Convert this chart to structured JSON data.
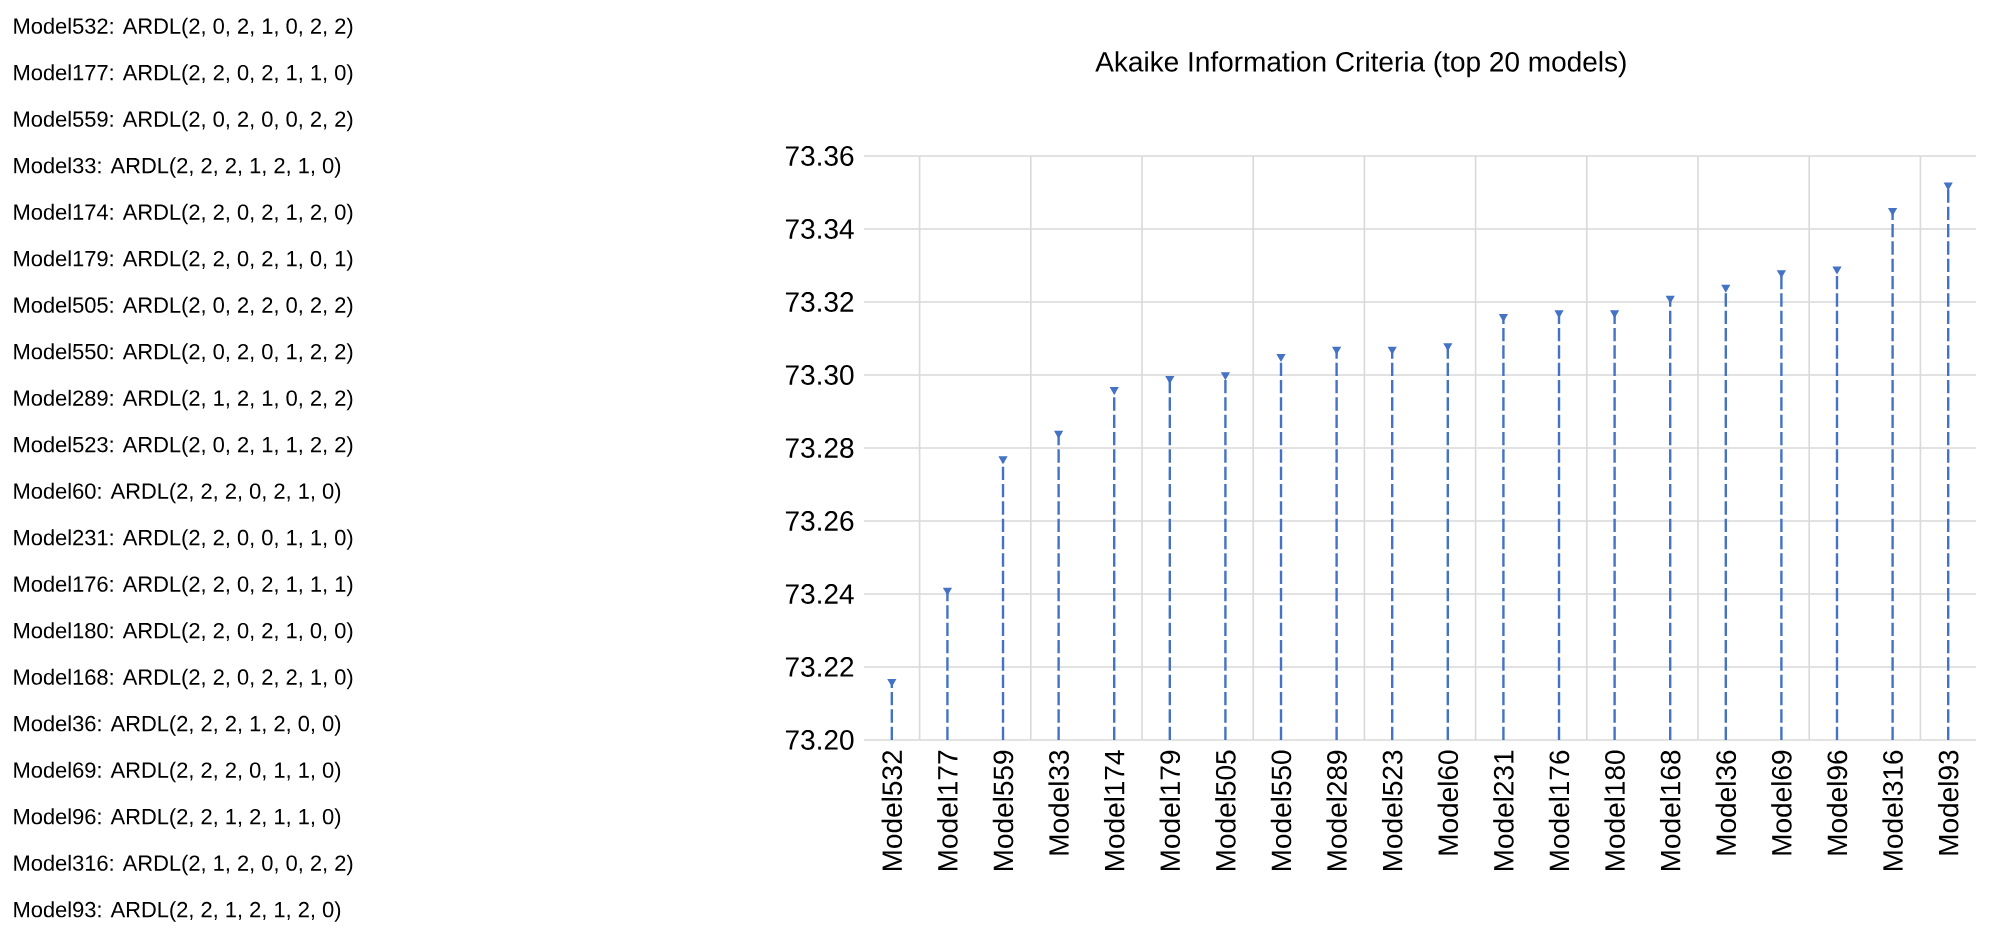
{
  "chart_data": {
    "type": "lollipop",
    "title": "Akaike Information Criteria (top 20 models)",
    "categories": [
      "Model532",
      "Model177",
      "Model559",
      "Model33",
      "Model174",
      "Model179",
      "Model505",
      "Model550",
      "Model289",
      "Model523",
      "Model60",
      "Model231",
      "Model176",
      "Model180",
      "Model168",
      "Model36",
      "Model69",
      "Model96",
      "Model316",
      "Model93"
    ],
    "values": [
      73.216,
      73.241,
      73.277,
      73.284,
      73.296,
      73.299,
      73.3,
      73.305,
      73.307,
      73.307,
      73.308,
      73.316,
      73.317,
      73.317,
      73.321,
      73.324,
      73.328,
      73.329,
      73.345,
      73.352
    ],
    "color": "#4472c4",
    "marker": "triangle",
    "line_style": "dashed",
    "grid": true,
    "ylim": [
      73.2,
      73.36
    ],
    "yticks": [
      {
        "value": 73.2,
        "label": "73.20"
      },
      {
        "value": 73.22,
        "label": "73.22"
      },
      {
        "value": 73.24,
        "label": "73.24"
      },
      {
        "value": 73.26,
        "label": "73.26"
      },
      {
        "value": 73.28,
        "label": "73.28"
      },
      {
        "value": 73.3,
        "label": "73.30"
      },
      {
        "value": 73.32,
        "label": "73.32"
      },
      {
        "value": 73.34,
        "label": "73.34"
      },
      {
        "value": 73.36,
        "label": "73.36"
      }
    ],
    "annotations": [
      "Model532: ARDL(2, 0, 2, 1, 0, 2, 2)",
      "Model177: ARDL(2, 2, 0, 2, 1, 1, 0)",
      "Model559: ARDL(2, 0, 2, 0, 0, 2, 2)",
      "Model33: ARDL(2, 2, 2, 1, 2, 1, 0)",
      "Model174: ARDL(2, 2, 0, 2, 1, 2, 0)",
      "Model179: ARDL(2, 2, 0, 2, 1, 0, 1)",
      "Model505: ARDL(2, 0, 2, 2, 0, 2, 2)",
      "Model550: ARDL(2, 0, 2, 0, 1, 2, 2)",
      "Model289: ARDL(2, 1, 2, 1, 0, 2, 2)",
      "Model523: ARDL(2, 0, 2, 1, 1, 2, 2)",
      "Model60: ARDL(2, 2, 2, 0, 2, 1, 0)",
      "Model231: ARDL(2, 2, 0, 0, 1, 1, 0)",
      "Model176: ARDL(2, 2, 0, 2, 1, 1, 1)",
      "Model180: ARDL(2, 2, 0, 2, 1, 0, 0)",
      "Model168: ARDL(2, 2, 0, 2, 2, 1, 0)",
      "Model36: ARDL(2, 2, 2, 1, 2, 0, 0)",
      "Model69: ARDL(2, 2, 2, 0, 1, 1, 0)",
      "Model96: ARDL(2, 2, 1, 2, 1, 1, 0)",
      "Model316: ARDL(2, 1, 2, 0, 0, 2, 2)",
      "Model93: ARDL(2, 2, 1, 2, 1, 2, 0)"
    ]
  }
}
